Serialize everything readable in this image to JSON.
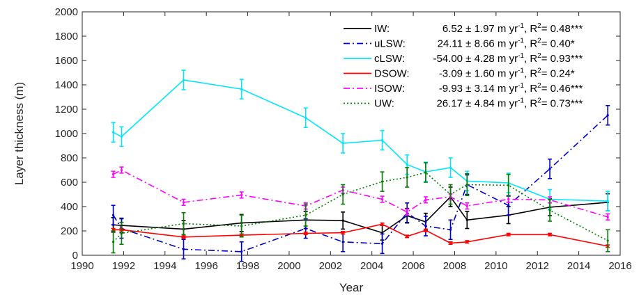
{
  "chart_data": {
    "type": "line",
    "xlabel": "Year",
    "ylabel": "Layer thickness (m)",
    "xlim": [
      1990,
      2016
    ],
    "ylim": [
      0,
      2000
    ],
    "xticks": [
      1990,
      1992,
      1994,
      1996,
      1998,
      2000,
      2002,
      2004,
      2006,
      2008,
      2010,
      2012,
      2014,
      2016
    ],
    "yticks": [
      0,
      200,
      400,
      600,
      800,
      1000,
      1200,
      1400,
      1600,
      1800,
      2000
    ],
    "grid": false,
    "legend_position": "top-right",
    "series": [
      {
        "name": "IW",
        "legend_label": "IW:",
        "legend_stats": "6.52 ± 1.97 m yr",
        "legend_r2": ", R",
        "legend_r2_value": "= 0.48***",
        "color": "#000000",
        "dash": "solid",
        "x": [
          1991.5,
          1991.9,
          1994.9,
          1997.7,
          2000.8,
          2002.6,
          2004.5,
          2005.7,
          2006.6,
          2007.8,
          2008.6,
          2010.6,
          2012.6,
          2015.4
        ],
        "y": [
          250,
          245,
          215,
          265,
          290,
          285,
          185,
          325,
          275,
          480,
          290,
          330,
          395,
          435
        ],
        "err": [
          60,
          60,
          70,
          70,
          70,
          70,
          60,
          60,
          70,
          80,
          70,
          70,
          70,
          70
        ]
      },
      {
        "name": "uLSW",
        "legend_label": "uLSW:",
        "legend_stats": "24.11 ±  8.66 m yr",
        "legend_r2": ", R",
        "legend_r2_value": "= 0.40*",
        "color": "#0000cc",
        "dash": "dashdot",
        "x": [
          1991.5,
          1991.9,
          1994.9,
          1997.7,
          2000.8,
          2002.6,
          2004.5,
          2005.7,
          2006.6,
          2007.8,
          2008.6,
          2010.6,
          2012.6,
          2015.4
        ],
        "y": [
          330,
          220,
          50,
          30,
          220,
          110,
          95,
          350,
          240,
          210,
          580,
          410,
          710,
          1150
        ],
        "err": [
          80,
          80,
          80,
          80,
          80,
          80,
          80,
          80,
          80,
          80,
          80,
          80,
          80,
          80
        ]
      },
      {
        "name": "cLSW",
        "legend_label": "cLSW:",
        "legend_stats": "-54.00 ± 4.28 m yr",
        "legend_r2": ", R",
        "legend_r2_value": "= 0.93***",
        "color": "#00e5ff",
        "dash": "solid",
        "x": [
          1991.5,
          1991.9,
          1994.9,
          1997.7,
          2000.8,
          2002.6,
          2004.5,
          2005.7,
          2006.6,
          2007.8,
          2008.6,
          2010.6,
          2012.6,
          2015.4
        ],
        "y": [
          1010,
          975,
          1440,
          1365,
          1130,
          920,
          945,
          745,
          685,
          720,
          610,
          595,
          460,
          445
        ],
        "err": [
          80,
          80,
          80,
          80,
          80,
          80,
          80,
          80,
          80,
          80,
          80,
          80,
          80,
          80
        ]
      },
      {
        "name": "DSOW",
        "legend_label": "DSOW:",
        "legend_stats": "-3.09 ± 1.60 m yr",
        "legend_r2": ", R",
        "legend_r2_value": "= 0.24*",
        "color": "#ff0000",
        "dash": "solid",
        "x": [
          1991.5,
          1991.9,
          1994.9,
          1997.7,
          2000.8,
          2002.6,
          2004.5,
          2005.7,
          2006.6,
          2007.8,
          2008.6,
          2010.6,
          2012.6,
          2015.4
        ],
        "y": [
          210,
          210,
          150,
          165,
          180,
          185,
          255,
          155,
          205,
          100,
          110,
          170,
          170,
          75
        ],
        "err": [
          10,
          10,
          10,
          10,
          10,
          10,
          10,
          10,
          10,
          10,
          10,
          10,
          10,
          10
        ]
      },
      {
        "name": "ISOW",
        "legend_label": "ISOW:",
        "legend_stats": "-9.93 ± 3.14 m yr",
        "legend_r2": ", R",
        "legend_r2_value": "= 0.46***",
        "color": "#ff00ff",
        "dash": "dashdot",
        "x": [
          1991.5,
          1991.9,
          1994.9,
          1997.7,
          2000.8,
          2002.6,
          2004.5,
          2005.7,
          2006.6,
          2007.8,
          2008.6,
          2010.6,
          2012.6,
          2015.4
        ],
        "y": [
          665,
          700,
          435,
          495,
          405,
          535,
          460,
          355,
          455,
          480,
          405,
          460,
          455,
          315
        ],
        "err": [
          25,
          25,
          25,
          25,
          25,
          25,
          25,
          25,
          25,
          25,
          25,
          25,
          25,
          25
        ]
      },
      {
        "name": "UW",
        "legend_label": "UW:",
        "legend_stats": "26.17 ± 4.84 m yr",
        "legend_r2": ", R",
        "legend_r2_value": "= 0.73***",
        "color": "#008000",
        "dash": "dotted",
        "x": [
          1991.5,
          1991.9,
          1994.9,
          1997.7,
          2000.8,
          2002.6,
          2004.5,
          2005.7,
          2006.6,
          2007.8,
          2008.6,
          2010.6,
          2012.6,
          2015.4
        ],
        "y": [
          110,
          180,
          260,
          240,
          330,
          500,
          605,
          640,
          680,
          500,
          580,
          575,
          370,
          120
        ],
        "err": [
          90,
          90,
          90,
          90,
          90,
          80,
          80,
          80,
          80,
          80,
          90,
          90,
          90,
          90
        ]
      }
    ]
  }
}
